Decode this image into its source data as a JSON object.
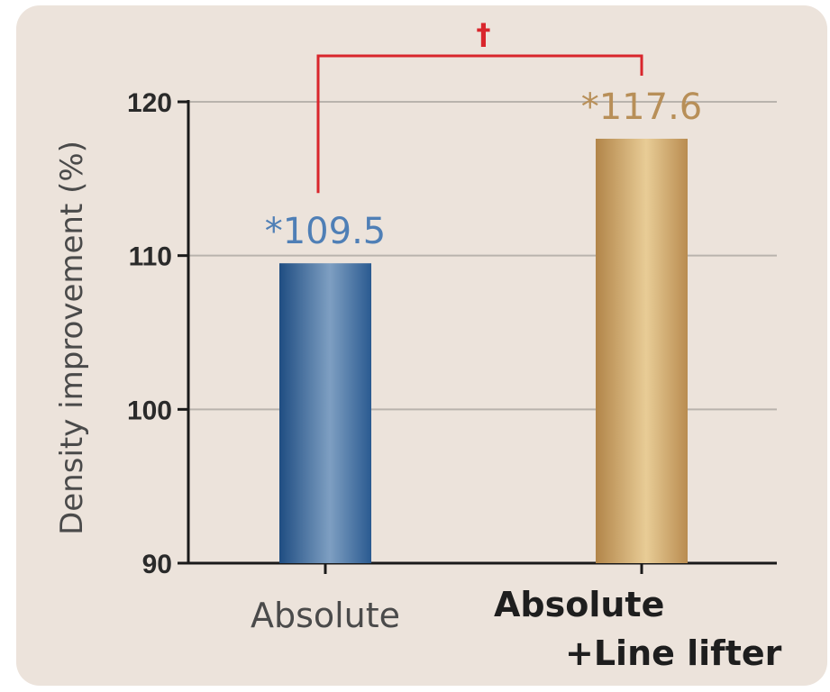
{
  "chart_data": {
    "type": "bar",
    "ylabel": "Density improvement (%)",
    "ylim": [
      90,
      120
    ],
    "yticks": [
      90,
      100,
      110,
      120
    ],
    "grid": true,
    "categories": [
      {
        "lines": [
          "Absolute"
        ],
        "bold": false
      },
      {
        "lines": [
          "Absolute",
          "+Line lifter"
        ],
        "bold": true
      }
    ],
    "values": [
      109.5,
      117.6
    ],
    "data_labels": [
      "*109.5",
      "*117.6"
    ],
    "bar_colors": [
      "#3e6d9f",
      "#c4995a"
    ],
    "label_colors": [
      "#4f7fb6",
      "#b88f58"
    ],
    "significance": {
      "mark": "†",
      "color": "#d9262c",
      "between": [
        0,
        1
      ]
    }
  }
}
